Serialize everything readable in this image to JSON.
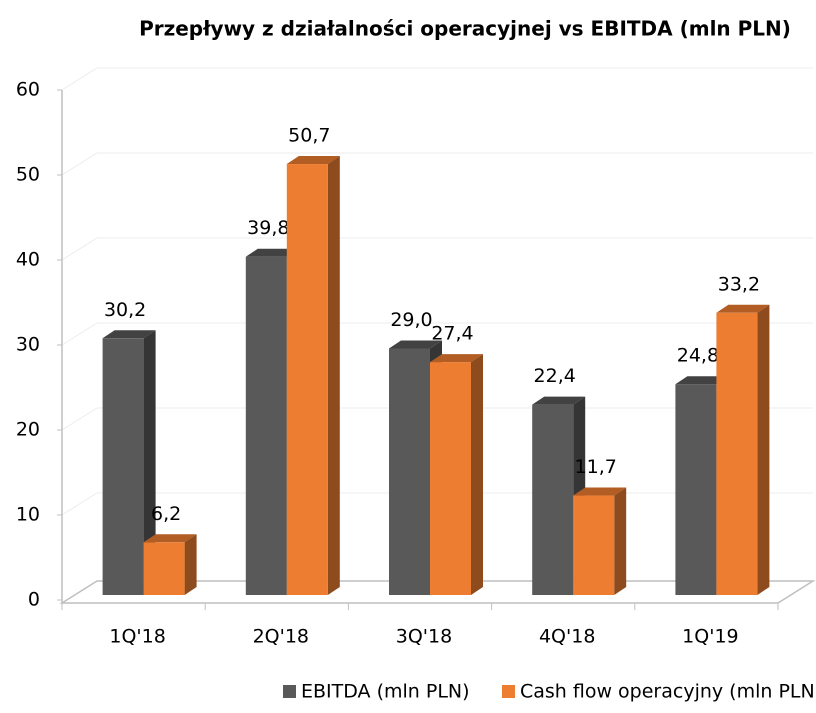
{
  "chart_data": {
    "type": "bar3d",
    "title": "Przepływy z działalności operacyjnej vs EBITDA (mln PLN)",
    "categories": [
      "1Q'18",
      "2Q'18",
      "3Q'18",
      "4Q'18",
      "1Q'19"
    ],
    "series": [
      {
        "name": "EBITDA (mln PLN)",
        "color": "#595959",
        "values": [
          30.2,
          39.8,
          29.0,
          22.4,
          24.8
        ],
        "value_labels": [
          "30,2",
          "39,8",
          "29,0",
          "22,4",
          "24,8"
        ]
      },
      {
        "name": "Cash flow operacyjny (mln PLN)",
        "color": "#ed7d31",
        "values": [
          6.2,
          50.7,
          27.4,
          11.7,
          33.2
        ],
        "value_labels": [
          "6,2",
          "50,7",
          "27,4",
          "11,7",
          "33,2"
        ]
      }
    ],
    "ylim": [
      0,
      60
    ],
    "yticks": [
      0,
      10,
      20,
      30,
      40,
      50,
      60
    ],
    "grid": true,
    "legend": "bottom"
  }
}
